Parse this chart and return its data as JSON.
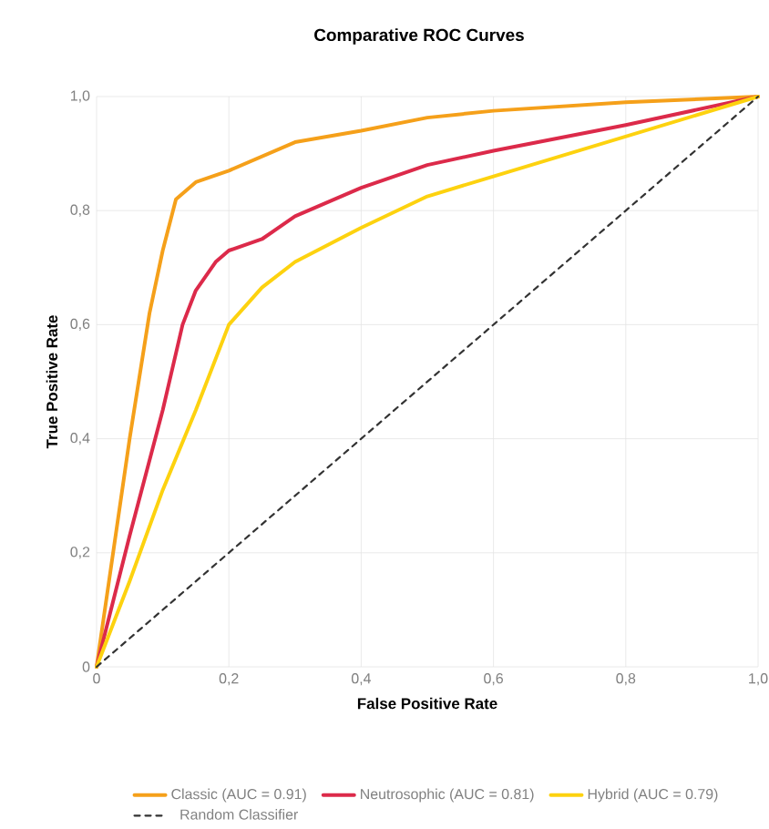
{
  "chart_data": {
    "type": "line",
    "title": "Comparative ROC Curves",
    "xlabel": "False Positive Rate",
    "ylabel": "True Positive Rate",
    "xlim": [
      0,
      1
    ],
    "ylim": [
      0,
      1
    ],
    "xticks": [
      0,
      {
        "value": 0.2,
        "label": "0,2"
      },
      {
        "value": 0.4,
        "label": "0,4"
      },
      {
        "value": 0.6,
        "label": "0,6"
      },
      {
        "value": 0.8,
        "label": "0,8"
      },
      {
        "value": 1,
        "label": "1,0"
      }
    ],
    "yticks": [
      0,
      {
        "value": 0.2,
        "label": "0,2"
      },
      {
        "value": 0.4,
        "label": "0,4"
      },
      {
        "value": 0.6,
        "label": "0,6"
      },
      {
        "value": 0.8,
        "label": "0,8"
      },
      {
        "value": 1,
        "label": "1,0"
      }
    ],
    "grid": true,
    "legend": "bottom",
    "marker": "none",
    "series": [
      {
        "name": "Classic (AUC = 0.91)",
        "color": "#f5a01a",
        "x": [
          0,
          0.05,
          0.08,
          0.1,
          0.12,
          0.15,
          0.2,
          0.3,
          0.4,
          0.5,
          0.6,
          0.8,
          1
        ],
        "values": [
          0,
          0.4,
          0.62,
          0.73,
          0.82,
          0.85,
          0.87,
          0.92,
          0.94,
          0.963,
          0.975,
          0.99,
          1
        ]
      },
      {
        "name": "Neutrosophic (AUC = 0.81)",
        "color": "#dc2a4a",
        "x": [
          0,
          0.05,
          0.1,
          0.13,
          0.15,
          0.18,
          0.2,
          0.25,
          0.3,
          0.4,
          0.5,
          0.6,
          0.8,
          1
        ],
        "values": [
          0,
          0.23,
          0.45,
          0.6,
          0.66,
          0.71,
          0.73,
          0.75,
          0.79,
          0.84,
          0.88,
          0.905,
          0.95,
          1
        ]
      },
      {
        "name": "Hybrid (AUC = 0.79)",
        "color": "#fdd20f",
        "x": [
          0,
          0.05,
          0.1,
          0.15,
          0.2,
          0.25,
          0.3,
          0.4,
          0.5,
          0.6,
          0.8,
          1
        ],
        "values": [
          0,
          0.15,
          0.31,
          0.45,
          0.6,
          0.665,
          0.71,
          0.77,
          0.825,
          0.86,
          0.93,
          1
        ]
      },
      {
        "name": "Random Classifier",
        "color": "#333333",
        "line_style": "dashed",
        "x": [
          0,
          1
        ],
        "values": [
          0,
          1
        ]
      }
    ]
  }
}
